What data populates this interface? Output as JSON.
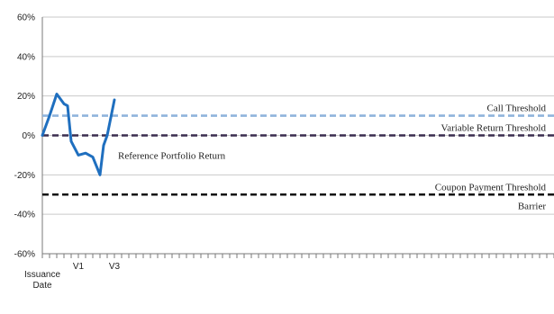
{
  "chart_data": {
    "type": "line",
    "y_ticks": [
      "60%",
      "40%",
      "20%",
      "0%",
      "-20%",
      "-40%",
      "-60%"
    ],
    "ylim": [
      -60,
      60
    ],
    "grid": true,
    "category_labels": [
      {
        "label": "Issuance Date",
        "at": 0
      },
      {
        "label": "V1",
        "at": 5
      },
      {
        "label": "V3",
        "at": 10
      }
    ],
    "series": [
      {
        "color": "#1f6fbf",
        "x": [
          0,
          1,
          2,
          3,
          3.5,
          4,
          5,
          6,
          7,
          8,
          8.5,
          9,
          10
        ],
        "y": [
          0,
          10,
          21,
          16,
          15,
          -3,
          -10,
          -9,
          -11,
          -20,
          -5,
          0,
          18
        ]
      }
    ],
    "thresholds": [
      {
        "label": "Call Threshold",
        "value": 10,
        "color": "#8fb4dc"
      },
      {
        "label": "Variable Return Threshold",
        "value": 0,
        "color": "#3a2d4f"
      },
      {
        "label": "Coupon Payment Threshold",
        "value": -30,
        "color": "#111111"
      },
      {
        "label": "Barrier",
        "value": -30,
        "color": "#111111"
      }
    ],
    "annotations": [
      {
        "label": "Reference Portfolio Return"
      }
    ]
  }
}
